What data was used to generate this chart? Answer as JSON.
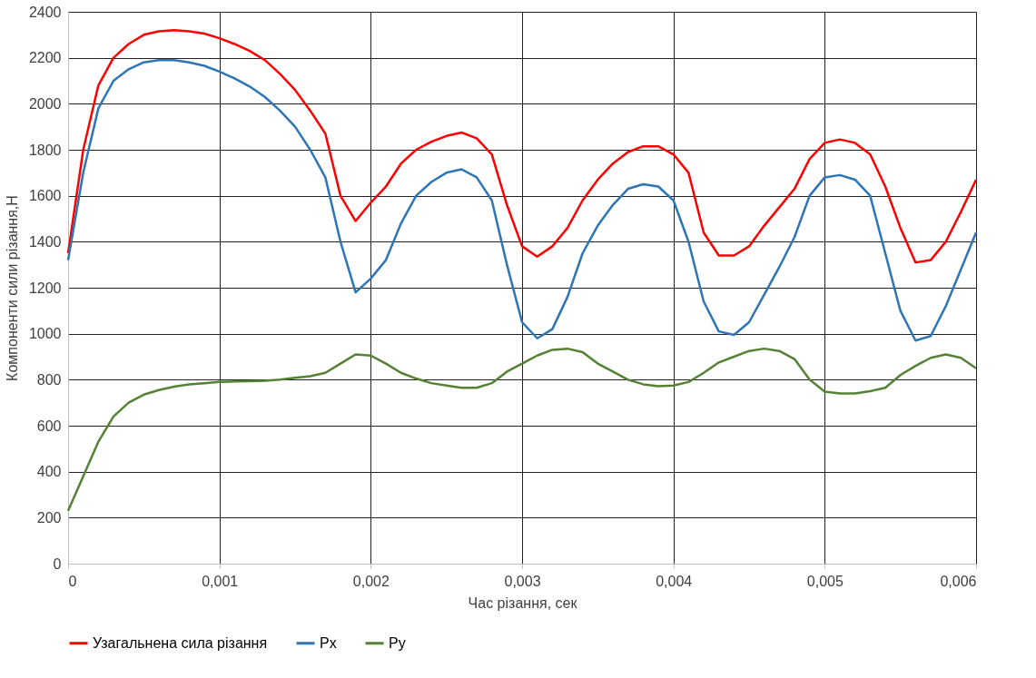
{
  "chart_data": {
    "type": "line",
    "xlabel": "Час різання, сек",
    "ylabel": "Компоненти сили різання,Н",
    "x": [
      0,
      0.0001,
      0.0002,
      0.0003,
      0.0004,
      0.0005,
      0.0006,
      0.0007,
      0.0008,
      0.0009,
      0.001,
      0.0011,
      0.0012,
      0.0013,
      0.0014,
      0.0015,
      0.0016,
      0.0017,
      0.0018,
      0.0019,
      0.002,
      0.0021,
      0.0022,
      0.0023,
      0.0024,
      0.0025,
      0.0026,
      0.0027,
      0.0028,
      0.0029,
      0.003,
      0.0031,
      0.0032,
      0.0033,
      0.0034,
      0.0035,
      0.0036,
      0.0037,
      0.0038,
      0.0039,
      0.004,
      0.0041,
      0.0042,
      0.0043,
      0.0044,
      0.0045,
      0.0046,
      0.0047,
      0.0048,
      0.0049,
      0.005,
      0.0051,
      0.0052,
      0.0053,
      0.0054,
      0.0055,
      0.0056,
      0.0057,
      0.0058,
      0.0059,
      0.006
    ],
    "series": [
      {
        "name": "Узагальнена сила різання",
        "color": "#ff0000",
        "values": [
          1350,
          1800,
          2080,
          2200,
          2260,
          2300,
          2315,
          2320,
          2315,
          2305,
          2285,
          2260,
          2230,
          2190,
          2130,
          2060,
          1970,
          1870,
          1600,
          1490,
          1570,
          1640,
          1740,
          1800,
          1835,
          1860,
          1875,
          1850,
          1780,
          1560,
          1380,
          1335,
          1380,
          1460,
          1580,
          1670,
          1740,
          1790,
          1815,
          1815,
          1780,
          1700,
          1440,
          1340,
          1340,
          1380,
          1470,
          1550,
          1630,
          1760,
          1830,
          1845,
          1830,
          1780,
          1640,
          1460,
          1310,
          1320,
          1400,
          1530,
          1670
        ]
      },
      {
        "name": "Px",
        "color": "#2e75b6",
        "values": [
          1320,
          1700,
          1980,
          2100,
          2150,
          2180,
          2190,
          2190,
          2180,
          2165,
          2140,
          2110,
          2075,
          2030,
          1970,
          1900,
          1800,
          1680,
          1400,
          1180,
          1240,
          1320,
          1480,
          1600,
          1660,
          1700,
          1715,
          1680,
          1580,
          1300,
          1050,
          980,
          1020,
          1160,
          1350,
          1470,
          1560,
          1630,
          1650,
          1640,
          1580,
          1400,
          1140,
          1010,
          995,
          1050,
          1170,
          1290,
          1420,
          1600,
          1680,
          1690,
          1670,
          1600,
          1350,
          1100,
          970,
          990,
          1120,
          1280,
          1440
        ]
      },
      {
        "name": "Py",
        "color": "#548235",
        "values": [
          230,
          380,
          530,
          640,
          700,
          735,
          755,
          770,
          780,
          785,
          790,
          792,
          793,
          795,
          800,
          808,
          815,
          830,
          870,
          910,
          905,
          870,
          830,
          805,
          785,
          775,
          765,
          765,
          785,
          835,
          870,
          905,
          930,
          935,
          920,
          870,
          835,
          800,
          780,
          772,
          775,
          790,
          830,
          875,
          900,
          925,
          935,
          925,
          890,
          800,
          748,
          740,
          740,
          750,
          765,
          820,
          860,
          895,
          910,
          895,
          850
        ]
      }
    ],
    "xlim": [
      0,
      0.006
    ],
    "xticks": [
      0,
      {
        "value": 0.001,
        "label": "0,001"
      },
      {
        "value": 0.002,
        "label": "0,002"
      },
      {
        "value": 0.003,
        "label": "0,003"
      },
      {
        "value": 0.004,
        "label": "0,004"
      },
      {
        "value": 0.005,
        "label": "0,005"
      },
      {
        "value": 0.006,
        "label": "0,006"
      }
    ],
    "ylim": [
      0,
      2400
    ],
    "yticks": [
      0,
      200,
      400,
      600,
      800,
      1000,
      1200,
      1400,
      1600,
      1800,
      2000,
      2200,
      2400
    ],
    "grid": true,
    "legend": "bottom",
    "marker": "none",
    "line_style": "solid"
  }
}
